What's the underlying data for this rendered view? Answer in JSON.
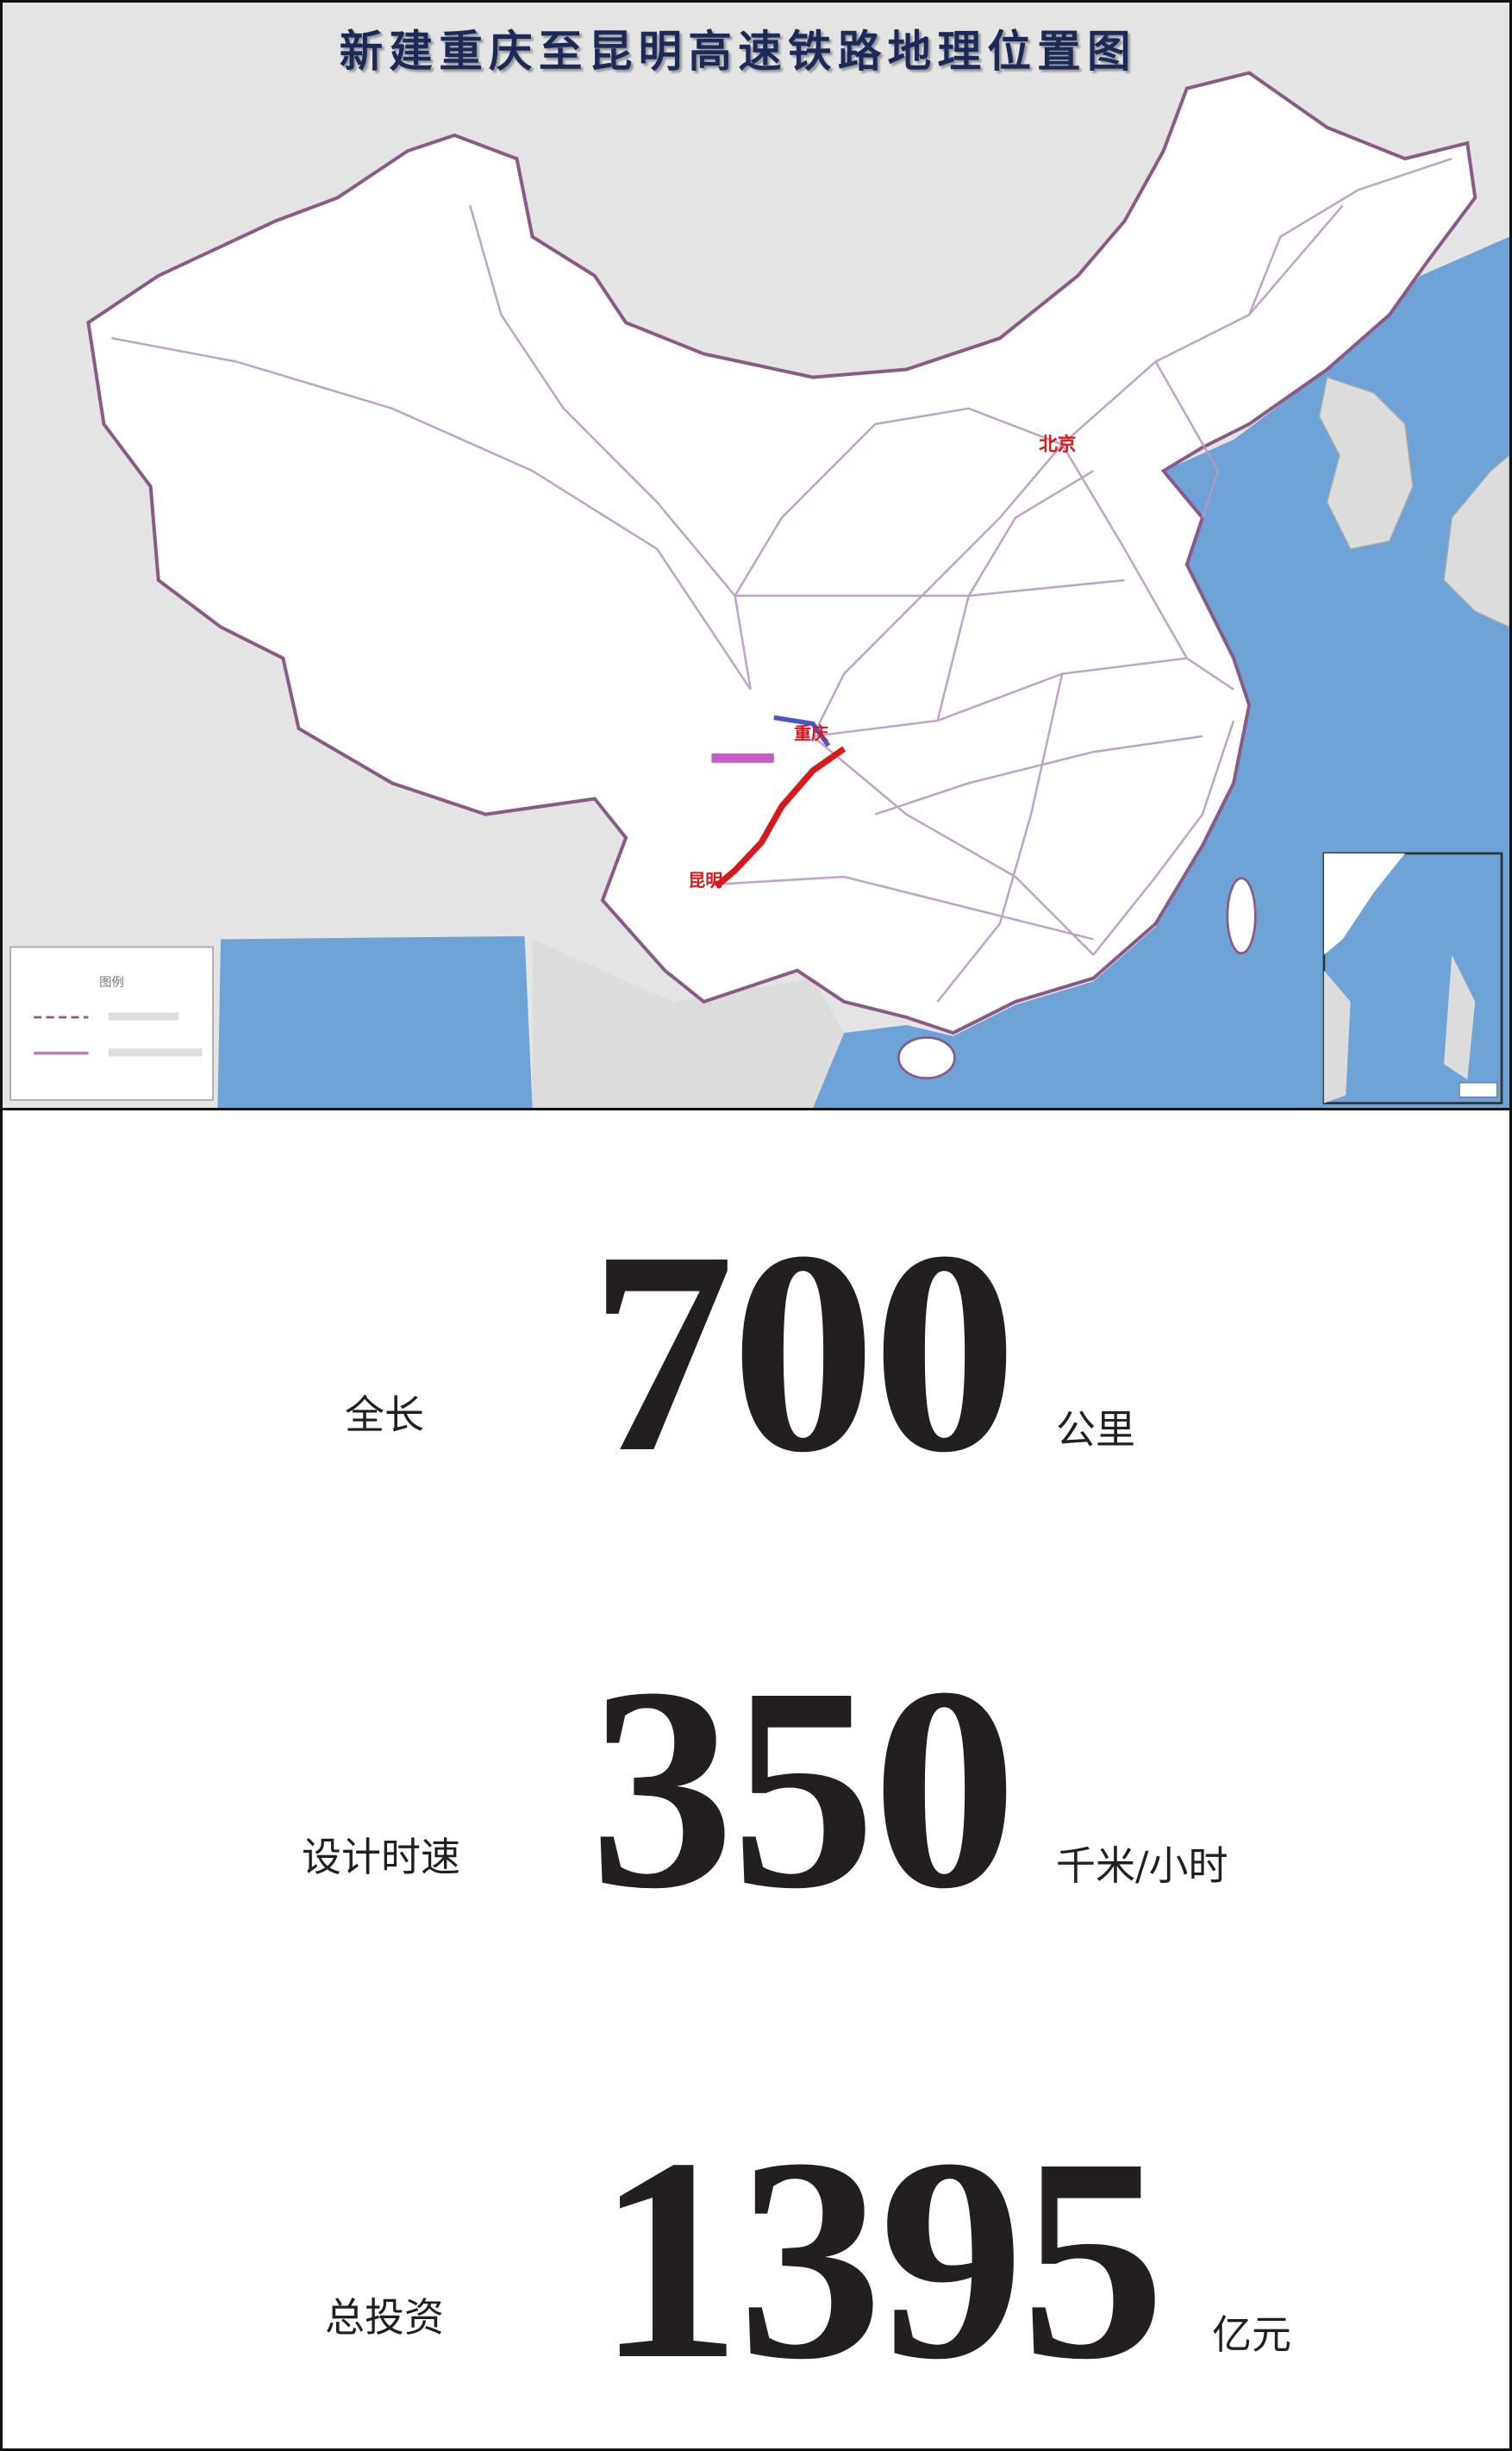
{
  "map": {
    "title": "新建重庆至昆明高速铁路地理位置图",
    "cities": {
      "beijing": "北京",
      "chongqing": "重庆",
      "kunming": "昆明"
    },
    "legend": {
      "title": "图例"
    },
    "colors": {
      "sea": "#6da3d6",
      "land_outside": "#e4e4e4",
      "china": "#ffffff",
      "border": "#8a5a86",
      "rail": "#b79bc0",
      "new_line": "#d7191c",
      "title": "#1f2a5a"
    }
  },
  "stats": [
    {
      "label": "全长",
      "value": "700",
      "unit": "公里"
    },
    {
      "label": "设计时速",
      "value": "350",
      "unit": "千米/小时"
    },
    {
      "label": "总投资",
      "value": "1395",
      "unit": "亿元"
    }
  ]
}
